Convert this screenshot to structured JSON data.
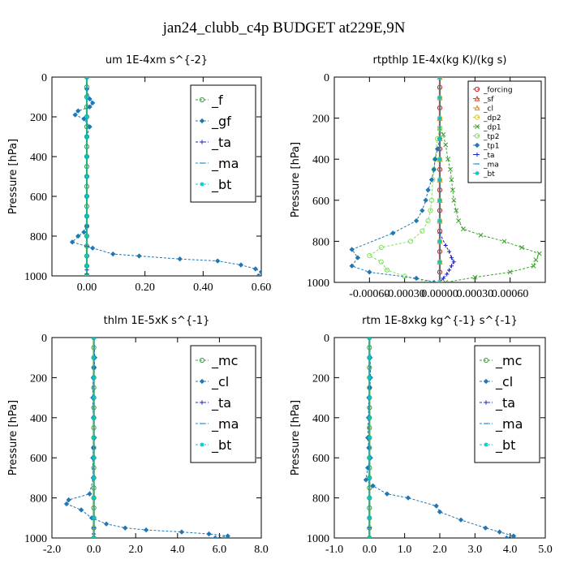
{
  "figure_title": "jan24_clubb_c4p  BUDGET at229E,9N",
  "chart_data": [
    {
      "type": "line",
      "title": "um  1E-4xm s^{-2}",
      "ylabel": "Pressure [hPa]",
      "xlim": [
        -0.12,
        0.6
      ],
      "ylim": [
        1000,
        0
      ],
      "xticks": [
        "0.00",
        "0.20",
        "0.40",
        "0.60"
      ],
      "xtick_values": [
        0.0,
        0.2,
        0.4,
        0.6
      ],
      "yticks": [
        "0",
        "200",
        "400",
        "600",
        "800",
        "1000"
      ],
      "ytick_values": [
        0,
        200,
        400,
        600,
        800,
        1000
      ],
      "legend_position": "top-right",
      "legend_size": "large",
      "series": [
        {
          "name": "_f",
          "color": "#3f9f3f",
          "marker": "circle",
          "x": [
            0,
            0,
            0,
            0,
            0,
            0,
            0,
            0,
            0,
            0,
            0,
            0,
            0,
            0,
            0,
            0,
            0,
            0,
            0,
            0,
            0
          ],
          "y": [
            0,
            50,
            100,
            150,
            200,
            250,
            300,
            350,
            400,
            450,
            500,
            550,
            600,
            650,
            700,
            750,
            800,
            850,
            900,
            950,
            1000
          ]
        },
        {
          "name": "_gf",
          "color": "#1f78b4",
          "marker": "diamond",
          "x": [
            0,
            0,
            0.01,
            0.02,
            0.01,
            -0.03,
            -0.04,
            -0.01,
            0.01,
            0,
            0,
            0,
            0,
            0,
            0,
            -0.01,
            -0.03,
            -0.05,
            0.02,
            0.09,
            0.18,
            0.32,
            0.45,
            0.53,
            0.58,
            0.6,
            0.59
          ],
          "y": [
            0,
            60,
            110,
            130,
            150,
            170,
            190,
            210,
            250,
            300,
            400,
            500,
            600,
            700,
            750,
            780,
            800,
            830,
            860,
            890,
            900,
            915,
            925,
            945,
            965,
            980,
            1000
          ]
        },
        {
          "name": "_ta",
          "color": "#2020c0",
          "marker": "plus",
          "x": [
            0,
            0,
            0,
            0,
            0,
            0,
            0,
            0,
            0,
            0,
            0,
            0,
            0,
            0,
            0
          ],
          "y": [
            0,
            100,
            200,
            300,
            400,
            500,
            600,
            700,
            800,
            850,
            900,
            950,
            970,
            990,
            1000
          ]
        },
        {
          "name": "_ma",
          "color": "#1a8fd8",
          "marker": "dash",
          "x": [
            0,
            0,
            0,
            0,
            0,
            0,
            0,
            0,
            0,
            0,
            0,
            0
          ],
          "y": [
            0,
            100,
            200,
            300,
            400,
            500,
            600,
            700,
            800,
            900,
            950,
            1000
          ]
        },
        {
          "name": "_bt",
          "color": "#00c8d0",
          "marker": "star",
          "x": [
            0,
            0,
            0,
            0,
            0,
            0,
            0,
            0,
            0,
            0,
            0,
            0
          ],
          "y": [
            0,
            100,
            200,
            300,
            400,
            500,
            600,
            700,
            800,
            900,
            950,
            1000
          ]
        }
      ]
    },
    {
      "type": "line",
      "title": "rtpthlp  1E-4x(kg K)/(kg s)",
      "ylabel": "Pressure [hPa]",
      "xlim": [
        -0.0009,
        0.0009
      ],
      "ylim": [
        1000,
        0
      ],
      "xticks": [
        "-0.00060",
        "-0.00030",
        "0.00000",
        "0.00030",
        "0.00060"
      ],
      "xtick_values": [
        -0.0006,
        -0.0003,
        0.0,
        0.0003,
        0.0006
      ],
      "yticks": [
        "0",
        "200",
        "400",
        "600",
        "800",
        "1000"
      ],
      "ytick_values": [
        0,
        200,
        400,
        600,
        800,
        1000
      ],
      "legend_position": "top-right",
      "legend_size": "small",
      "series": [
        {
          "name": "_forcing",
          "color": "#cc2020",
          "marker": "circle",
          "x": [
            0,
            0,
            0,
            0,
            0,
            0,
            0,
            0,
            0,
            0,
            0,
            0,
            0,
            0,
            0,
            0,
            0,
            0,
            0,
            0,
            0
          ],
          "y": [
            0,
            50,
            100,
            150,
            200,
            250,
            300,
            350,
            400,
            450,
            500,
            550,
            600,
            650,
            700,
            750,
            800,
            850,
            900,
            950,
            1000
          ]
        },
        {
          "name": "_sf",
          "color": "#d04020",
          "marker": "triangle",
          "x": [
            0,
            0,
            0,
            0,
            0,
            0,
            0,
            0,
            0,
            0,
            0
          ],
          "y": [
            0,
            100,
            200,
            300,
            400,
            500,
            600,
            700,
            800,
            900,
            1000
          ]
        },
        {
          "name": "_cl",
          "color": "#e08a20",
          "marker": "triangle",
          "x": [
            0,
            0,
            0,
            0,
            0,
            0,
            0,
            0,
            0,
            0,
            0
          ],
          "y": [
            0,
            100,
            200,
            300,
            400,
            500,
            600,
            700,
            800,
            900,
            1000
          ]
        },
        {
          "name": "_dp2",
          "color": "#d8c830",
          "marker": "circle",
          "x": [
            0,
            0,
            0,
            0,
            0,
            0,
            0,
            0,
            0,
            0,
            0
          ],
          "y": [
            0,
            100,
            200,
            300,
            400,
            500,
            600,
            700,
            800,
            900,
            1000
          ]
        },
        {
          "name": "_dp1",
          "color": "#3aa02a",
          "marker": "cross",
          "x": [
            0,
            3e-05,
            5e-05,
            7e-05,
            9e-05,
            0.0001,
            0.00011,
            0.00012,
            0.00014,
            0.00016,
            0.0002,
            0.00035,
            0.00055,
            0.0007,
            0.00085,
            0.00082,
            0.0008,
            0.0006,
            0.0003,
            5e-05
          ],
          "y": [
            250,
            280,
            330,
            400,
            450,
            500,
            550,
            600,
            650,
            700,
            740,
            770,
            800,
            830,
            860,
            890,
            920,
            950,
            975,
            1000
          ]
        },
        {
          "name": "_tp2",
          "color": "#80e060",
          "marker": "circle",
          "x": [
            0,
            -2e-05,
            -4e-05,
            -5e-05,
            -6e-05,
            -7e-05,
            -8e-05,
            -0.0001,
            -0.00015,
            -0.00025,
            -0.0005,
            -0.0006,
            -0.0005,
            -0.00045,
            -0.0003,
            -0.0001
          ],
          "y": [
            250,
            300,
            400,
            450,
            500,
            600,
            650,
            700,
            750,
            800,
            830,
            870,
            900,
            940,
            970,
            1000
          ]
        },
        {
          "name": "_tp1",
          "color": "#1f78b4",
          "marker": "diamond",
          "x": [
            0,
            -2e-05,
            -4e-05,
            -5e-05,
            -7e-05,
            -0.0001,
            -0.00012,
            -0.00015,
            -0.0002,
            -0.0004,
            -0.00075,
            -0.0007,
            -0.00075,
            -0.0006,
            -0.0002,
            -5e-05
          ],
          "y": [
            300,
            350,
            400,
            450,
            500,
            550,
            600,
            650,
            700,
            760,
            840,
            880,
            920,
            950,
            980,
            1000
          ]
        },
        {
          "name": "_ta",
          "color": "#2020c0",
          "marker": "plus",
          "x": [
            0,
            0,
            5e-05,
            8e-05,
            0.0001,
            0.00012,
            0.0001,
            8e-05,
            6e-05,
            3e-05,
            0
          ],
          "y": [
            700,
            760,
            820,
            850,
            880,
            900,
            920,
            940,
            960,
            980,
            1000
          ]
        },
        {
          "name": "_ma",
          "color": "#1a8fd8",
          "marker": "dash",
          "x": [
            0,
            0,
            0,
            0,
            0,
            0,
            0,
            0,
            0,
            0,
            0
          ],
          "y": [
            0,
            100,
            200,
            300,
            400,
            500,
            600,
            700,
            800,
            900,
            1000
          ]
        },
        {
          "name": "_bt",
          "color": "#00c8d0",
          "marker": "star",
          "x": [
            0,
            0,
            0,
            0,
            0,
            0,
            0,
            0,
            0,
            0,
            0
          ],
          "y": [
            0,
            100,
            200,
            300,
            400,
            500,
            600,
            700,
            800,
            900,
            1000
          ]
        }
      ]
    },
    {
      "type": "line",
      "title": "thlm  1E-5xK s^{-1}",
      "ylabel": "Pressure [hPa]",
      "xlim": [
        -2.0,
        8.0
      ],
      "ylim": [
        1000,
        0
      ],
      "xticks": [
        "-2.0",
        "0.0",
        "2.0",
        "4.0",
        "6.0",
        "8.0"
      ],
      "xtick_values": [
        -2.0,
        0.0,
        2.0,
        4.0,
        6.0,
        8.0
      ],
      "yticks": [
        "0",
        "200",
        "400",
        "600",
        "800",
        "1000"
      ],
      "ytick_values": [
        0,
        200,
        400,
        600,
        800,
        1000
      ],
      "legend_position": "top-right",
      "legend_size": "large",
      "series": [
        {
          "name": "_mc",
          "color": "#3f9f3f",
          "marker": "circle",
          "x": [
            0,
            0,
            0,
            0,
            0,
            0,
            0,
            0,
            0,
            0,
            0,
            0,
            0,
            0,
            0,
            0,
            0,
            0,
            0,
            0,
            0
          ],
          "y": [
            0,
            50,
            100,
            150,
            200,
            250,
            300,
            350,
            400,
            450,
            500,
            550,
            600,
            650,
            700,
            750,
            800,
            850,
            900,
            950,
            1000
          ]
        },
        {
          "name": "_cl",
          "color": "#1f78b4",
          "marker": "diamond",
          "x": [
            0,
            0.05,
            0.02,
            -0.03,
            -0.05,
            -0.02,
            0.02,
            -0.02,
            -0.05,
            -0.03,
            -0.2,
            -1.2,
            -1.3,
            -0.6,
            -0.1,
            0.6,
            1.5,
            2.5,
            4.2,
            5.5,
            6.4,
            5.8
          ],
          "y": [
            0,
            100,
            150,
            200,
            300,
            400,
            500,
            550,
            600,
            700,
            780,
            810,
            830,
            860,
            900,
            930,
            950,
            960,
            970,
            980,
            990,
            1000
          ]
        },
        {
          "name": "_ta",
          "color": "#2020c0",
          "marker": "plus",
          "x": [
            0,
            0,
            0,
            0,
            0,
            0,
            0,
            0,
            0,
            0,
            0,
            0,
            0
          ],
          "y": [
            0,
            100,
            200,
            300,
            400,
            500,
            600,
            700,
            800,
            900,
            950,
            980,
            1000
          ]
        },
        {
          "name": "_ma",
          "color": "#1a8fd8",
          "marker": "dash",
          "x": [
            0,
            0,
            0,
            0,
            0,
            0,
            0,
            0,
            0,
            0,
            0
          ],
          "y": [
            0,
            100,
            200,
            300,
            400,
            500,
            600,
            700,
            800,
            900,
            1000
          ]
        },
        {
          "name": "_bt",
          "color": "#00c8d0",
          "marker": "star",
          "x": [
            0,
            0,
            0,
            0,
            0,
            0,
            0,
            0,
            0,
            0,
            0
          ],
          "y": [
            0,
            100,
            200,
            300,
            400,
            500,
            600,
            700,
            800,
            900,
            1000
          ]
        }
      ]
    },
    {
      "type": "line",
      "title": "rtm  1E-8xkg kg^{-1} s^{-1}",
      "ylabel": "Pressure [hPa]",
      "xlim": [
        -1.0,
        5.0
      ],
      "ylim": [
        1000,
        0
      ],
      "xticks": [
        "-1.0",
        "0.0",
        "1.0",
        "2.0",
        "3.0",
        "4.0",
        "5.0"
      ],
      "xtick_values": [
        -1.0,
        0.0,
        1.0,
        2.0,
        3.0,
        4.0,
        5.0
      ],
      "yticks": [
        "0",
        "200",
        "400",
        "600",
        "800",
        "1000"
      ],
      "ytick_values": [
        0,
        200,
        400,
        600,
        800,
        1000
      ],
      "legend_position": "top-right",
      "legend_size": "large",
      "series": [
        {
          "name": "_mc",
          "color": "#3f9f3f",
          "marker": "circle",
          "x": [
            0,
            0,
            0,
            0,
            0,
            0,
            0,
            0,
            0,
            0,
            0,
            0,
            0,
            0,
            0,
            0,
            0,
            0,
            0,
            0,
            0
          ],
          "y": [
            0,
            50,
            100,
            150,
            200,
            250,
            300,
            350,
            400,
            450,
            500,
            550,
            600,
            650,
            700,
            750,
            800,
            850,
            900,
            950,
            1000
          ]
        },
        {
          "name": "_cl",
          "color": "#1f78b4",
          "marker": "diamond",
          "x": [
            0,
            0.02,
            0.03,
            0.01,
            -0.02,
            -0.03,
            -0.05,
            -0.02,
            0.03,
            -0.05,
            -0.1,
            0.1,
            0.5,
            1.1,
            1.9,
            2.0,
            2.6,
            3.3,
            3.7,
            4.1,
            3.9
          ],
          "y": [
            0,
            100,
            200,
            250,
            300,
            400,
            500,
            550,
            600,
            650,
            710,
            740,
            780,
            800,
            840,
            870,
            910,
            950,
            970,
            990,
            1000
          ]
        },
        {
          "name": "_ta",
          "color": "#2020c0",
          "marker": "plus",
          "x": [
            0,
            0,
            0,
            0,
            0,
            0,
            0,
            0,
            0,
            0,
            0,
            0
          ],
          "y": [
            0,
            100,
            200,
            300,
            400,
            500,
            600,
            700,
            800,
            900,
            950,
            1000
          ]
        },
        {
          "name": "_ma",
          "color": "#1a8fd8",
          "marker": "dash",
          "x": [
            0,
            0,
            0,
            0,
            0,
            0,
            0,
            0,
            0,
            0,
            0
          ],
          "y": [
            0,
            100,
            200,
            300,
            400,
            500,
            600,
            700,
            800,
            900,
            1000
          ]
        },
        {
          "name": "_bt",
          "color": "#00c8d0",
          "marker": "star",
          "x": [
            0,
            0,
            0,
            0,
            0,
            0,
            0,
            0,
            0,
            0,
            0
          ],
          "y": [
            0,
            100,
            200,
            300,
            400,
            500,
            600,
            700,
            800,
            900,
            1000
          ]
        }
      ]
    }
  ]
}
